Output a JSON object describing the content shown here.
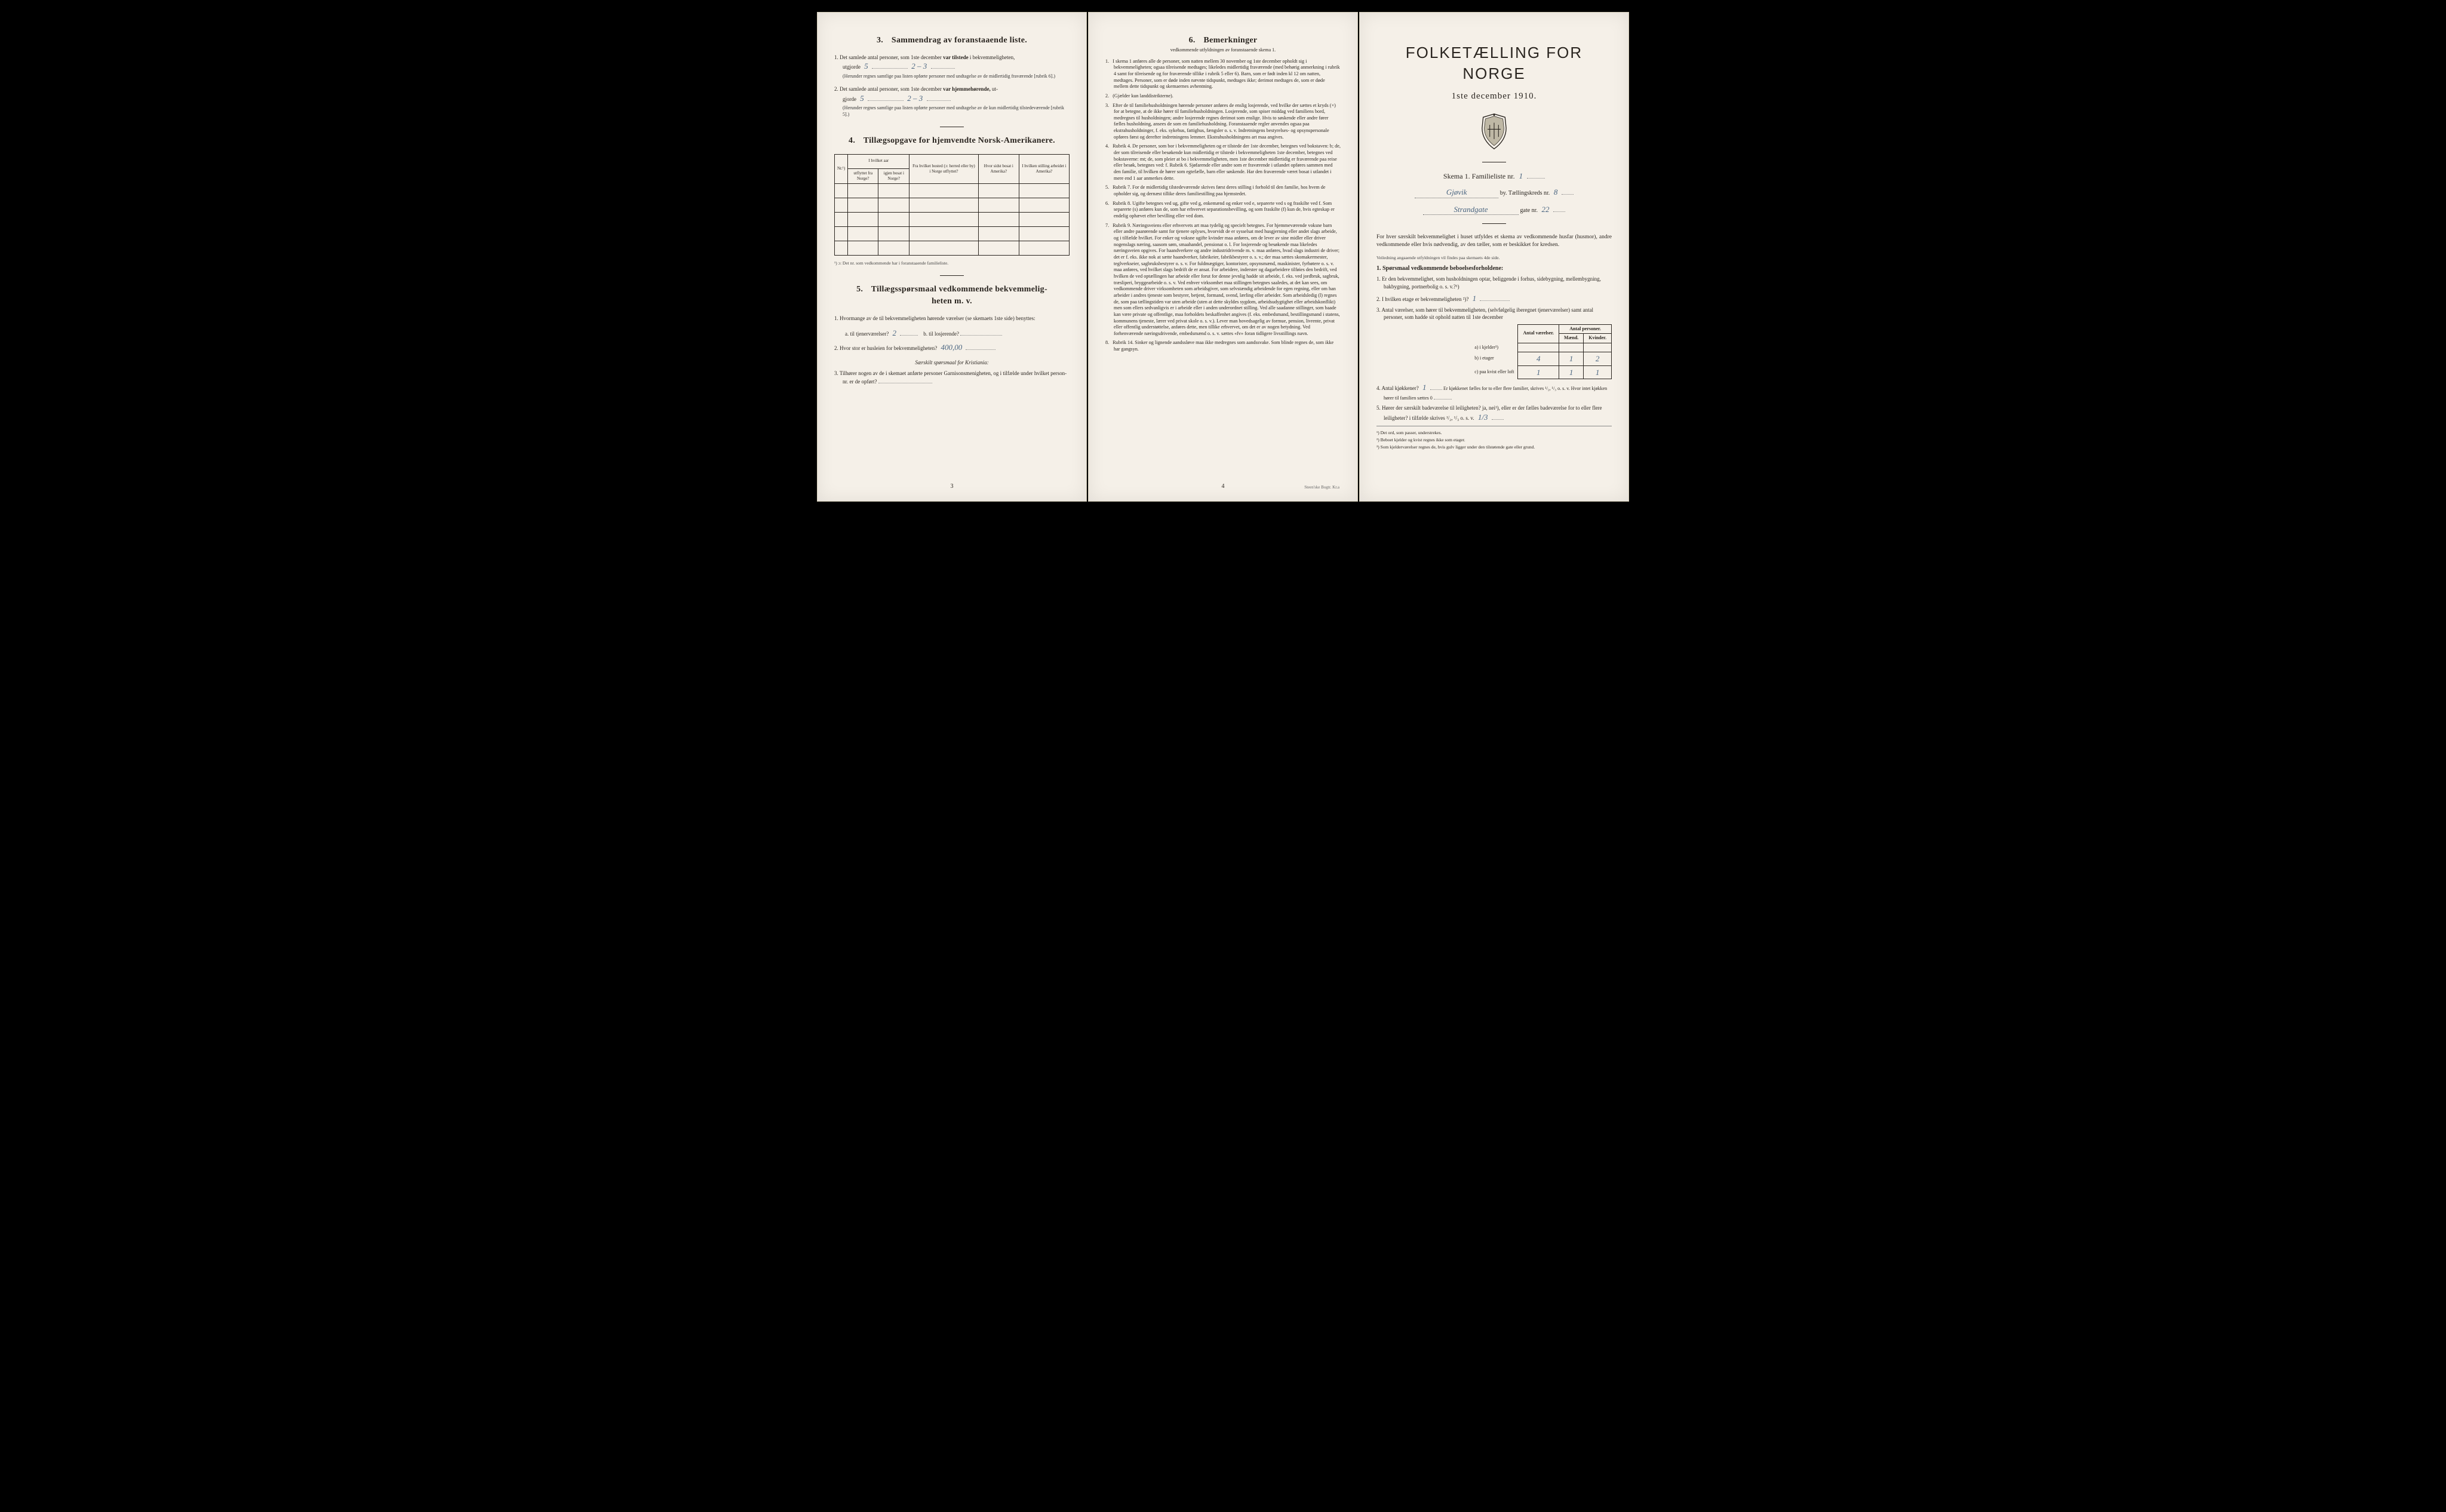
{
  "page1": {
    "sec3": {
      "num": "3.",
      "title": "Sammendrag av foranstaaende liste.",
      "q1_prefix": "1.  Det samlede antal personer, som 1ste december",
      "q1_bold": "var tilstede",
      "q1_suffix": "i bekvemmeligheten,",
      "q1_line2": "utgjorde",
      "q1_hand1": "5",
      "q1_hand2": "2 – 3",
      "q1_note": "(Herunder regnes samtlige paa listen opførte personer med undtagelse av de midlertidig fraværende [rubrik 6].)",
      "q2_prefix": "2.  Det samlede antal personer, som 1ste december",
      "q2_bold": "var hjemmehørende,",
      "q2_suffix": "ut-",
      "q2_line2": "gjorde",
      "q2_hand1": "5",
      "q2_hand2": "2 – 3",
      "q2_note": "(Herunder regnes samtlige paa listen opførte personer med undtagelse av de kun midlertidig tilstedeværende [rubrik 5].)"
    },
    "sec4": {
      "num": "4.",
      "title": "Tillægsopgave for hjemvendte Norsk-Amerikanere.",
      "headers": {
        "nr": "Nr.¹)",
        "h1_top": "I hvilket aar",
        "h1a": "utflyttet fra Norge?",
        "h1b": "igjen bosat i Norge?",
        "h2": "Fra hvilket bosted (ɔ: herred eller by) i Norge utflyttet?",
        "h3": "Hvor sidst bosat i Amerika?",
        "h4": "I hvilken stilling arbeidet i Amerika?"
      },
      "footnote": "¹) ɔ: Det nr. som vedkommende har i foranstaaende familieliste."
    },
    "sec5": {
      "num": "5.",
      "title_l1": "Tillægsspørsmaal vedkommende bekvemmelig-",
      "title_l2": "heten m. v.",
      "q1": "1.  Hvormange av de til bekvemmeligheten hørende værelser (se skemaets 1ste side) benyttes:",
      "q1a_label": "a.  til tjenerværelser?",
      "q1a_hand": "2",
      "q1b_label": "b.  til losjerende?",
      "q2_label": "2.  Hvor stor er husleien for bekvemmeligheten?",
      "q2_hand": "400,00",
      "q2_note": "Særskilt spørsmaal for Kristiania:",
      "q3": "3.  Tilhører nogen av de i skemaet anførte personer Garnisonsmenigheten, og i tilfælde under hvilket person-nr. er de opført?"
    },
    "pagenum": "3"
  },
  "page2": {
    "sec6": {
      "num": "6.",
      "title": "Bemerkninger",
      "subtitle": "vedkommende utfyldningen av foranstaaende skema 1.",
      "items": [
        {
          "n": "1.",
          "text": "I skema 1 anføres alle de personer, som natten mellem 30 november og 1ste december opholdt sig i bekvemmeligheten; ogsaa tilreisende medtages; likeledes midlertidig fraværende (med behørig anmerkning i rubrik 4 samt for tilreisende og for fraværende tillike i rubrik 5 eller 6). Barn, som er født inden kl 12 om natten, medtages. Personer, som er døde inden nævnte tidspunkt, medtages ikke; derimot medtages de, som er døde mellem dette tidspunkt og skemaernes avhentning."
        },
        {
          "n": "2.",
          "text": "(Gjælder kun landdistrikterne)."
        },
        {
          "n": "3.",
          "text": "Efter de til familiehusholdningen hørende personer anføres de enslig losjerende, ved hvilke der sættes et kryds (×) for at betegne, at de ikke hører til familiehusholdningen. Losjerende, som spiser middag ved familiens bord, medregnes til husholdningen; andre losjerende regnes derimot som enslige. Hvis to søskende eller andre fører fælles husholdning, ansees de som en familiehusholdning.  Foranstaaende regler anvendes ogsaa paa ekstrahusholdninger, f. eks. sykehus, fattighus, fængsler o. s. v. Indretningens bestyrelses- og opsynspersonale opføres først og derefter indretningens lemmer. Ekstrahusholdningens art maa angives."
        },
        {
          "n": "4.",
          "text": "Rubrik 4. De personer, som bor i bekvemmeligheten og er tilstede der 1ste december, betegnes ved bokstaven: b; de, der som tilreisende eller besøkende kun midlertidig er tilstede i bekvemmeligheten 1ste december, betegnes ved bokstaverne: mt; de, som pleier at bo i bekvemmeligheten, men 1ste december midlertidig er fraværende paa reise eller besøk, betegnes ved: f.  Rubrik 6. Sjøfarende eller andre som er fraværende i utlandet opføres sammen med den familie, til hvilken de hører som egtefælle, barn eller søskende. Har den fraværende været bosat i utlandet i mere end 1 aar anmerkes dette."
        },
        {
          "n": "5.",
          "text": "Rubrik 7. For de midlertidig tilstedeværende skrives først deres stilling i forhold til den familie, hos hvem de opholder sig, og dernæst tillike deres familiestilling paa hjemstedet."
        },
        {
          "n": "6.",
          "text": "Rubrik 8. Ugifte betegnes ved ug, gifte ved g, enkemænd og enker ved e, separerte ved s og fraskilte ved f. Som separerte (s) anføres kun de, som har erhvervet separationsbevilling, og som fraskilte (f) kun de, hvis egteskap er endelig ophævet efter bevilling eller ved dom."
        },
        {
          "n": "7.",
          "text": "Rubrik 9. Næringsveiens eller erhvervets art maa tydelig og specielt betegnes. For hjemmeværende voksne barn eller andre paarørende samt for tjenere oplyses, hvorvidt de er sysselsat med husgjerning eller andet slags arbeide, og i tilfælde hvilket. For enker og voksne ugifte kvinder maa anføres, om de lever av sine midler eller driver nogenslags næring, saasom søm, smaahandel, pensionat o. l.  For losjerende og besøkende maa likeledes næringsveien opgives.  For haandverkere og andre industridrivende m. v. maa anføres, hvad slags industri de driver; det er f. eks. ikke nok at sætte haandverker, fabrikeier, fabrikbestyrer o. s. v.; der maa sættes skomakermester, teglverkseier, sagbruksbestyrer o. s. v.  For fuldmægtiger, kontorister, opsynsmænd, maskinister, fyrbøtere o. s. v. maa anføres, ved hvilket slags bedrift de er ansat.  For arbeidere, inderster og dagarbeidere tilføies den bedrift, ved hvilken de ved optællingen har arbeide eller forut for denne jevnlig hadde sit arbeide, f. eks. ved jordbruk, sagbruk, træsliperi, bryggearbeide o. s. v.  Ved enhver virksomhet maa stillingen betegnes saaledes, at det kan sees, om vedkommende driver virksomheten som arbeidsgiver, som selvstændig arbeidende for egen regning, eller om han arbeider i andres tjeneste som bestyrer, betjent, formand, svend, lærling eller arbeider.  Som arbeidsledig (l) regnes de, som paa tællingstiden var uten arbeide (uten at dette skyldes sygdom, arbeidsudygtighet eller arbeidskonflikt) men som ellers sedvanligvis er i arbeide eller i anden underordnet stilling.  Ved alle saadanne stillinger, som baade kan være private og offentlige, maa forholdets beskaffenhet angives (f. eks. embedsmand, bestillingsmand i statens, kommunens tjeneste, lærer ved privat skole o. s. v.).  Lever man hovedsagelig av formue, pension, livrente, privat eller offentlig understøttelse, anføres dette, men tillike erhvervet, om det er av nogen betydning.  Ved forhenværende næringsdrivende, embedsmænd o. s. v. sættes «fv» foran tidligere livsstillings navn."
        },
        {
          "n": "8.",
          "text": "Rubrik 14. Sinker og lignende aandssløve maa ikke medregnes som aandssvake. Som blinde regnes de, som ikke har gangsyn."
        }
      ]
    },
    "pagenum": "4",
    "imprint": "Steen'ske Bogtr.  Kr.a"
  },
  "page3": {
    "title": "FOLKETÆLLING FOR NORGE",
    "subtitle": "1ste december 1910.",
    "skema_label": "Skema 1.   Familieliste nr.",
    "skema_hand": "1",
    "line1_hand": "Gjøvik",
    "line1_suffix": "by.   Tællingskreds nr.",
    "line1_hand2": "8",
    "line2_hand": "Strandgate",
    "line2_suffix": "gate nr.",
    "line2_hand2": "22",
    "intro": "For hver særskilt bekvemmelighet i huset utfyldes et skema av vedkommende husfar (husmor), andre vedkommende eller hvis nødvendig, av den tæller, som er beskikket for kredsen.",
    "intro_note": "Veiledning angaaende utfyldningen vil findes paa skemaets 4de side.",
    "sec1_title": "1. Spørsmaal vedkommende beboelsesforholdene:",
    "q1": "1.  Er den bekvemmelighet, som husholdningen optar, beliggende i forhus, sidebygning, mellembygning, bakbygning, portnerbolig o. s. v.?¹)",
    "q2_label": "2.  I hvilken etage er bekvemmeligheten ²)?",
    "q2_hand": "1",
    "q3": "3.  Antal værelser, som hører til bekvemmeligheten, (selvfølgelig iberegnet tjenerværelser) samt antal personer, som hadde sit ophold natten til 1ste december",
    "table": {
      "h1": "Antal værelser.",
      "h2": "Antal personer.",
      "h2a": "Mænd.",
      "h2b": "Kvinder.",
      "row_a": "a) i kjelder³)",
      "row_b": "b) i etager",
      "row_c": "c) paa kvist eller loft",
      "b_v": "4",
      "b_m": "1",
      "b_k": "2",
      "c_v": "1",
      "c_m": "1",
      "c_k": "1"
    },
    "q4_label": "4.  Antal kjøkkener?",
    "q4_hand": "1",
    "q4_rest": "Er kjøkkenet fælles for to eller flere familier, skrives ¹/₂, ¹/₃ o. s. v.  Hvor intet kjøkken hører til familien sættes 0",
    "q5_label": "5.  Hører der særskilt badeværelse til leiligheten?  ja, nei¹), eller er der fælles badeværelse for to eller flere leiligheter?  i tilfælde skrives ¹/₂, ¹/₃ o. s. v.",
    "q5_hand": "1/3",
    "fn1": "¹) Det ord, som passer, understrekes.",
    "fn2": "²) Beboet kjelder og kvist regnes ikke som etager.",
    "fn3": "³) Som kjelderværelser regnes de, hvis gulv ligger under den tilstøtende gate eller grund."
  }
}
